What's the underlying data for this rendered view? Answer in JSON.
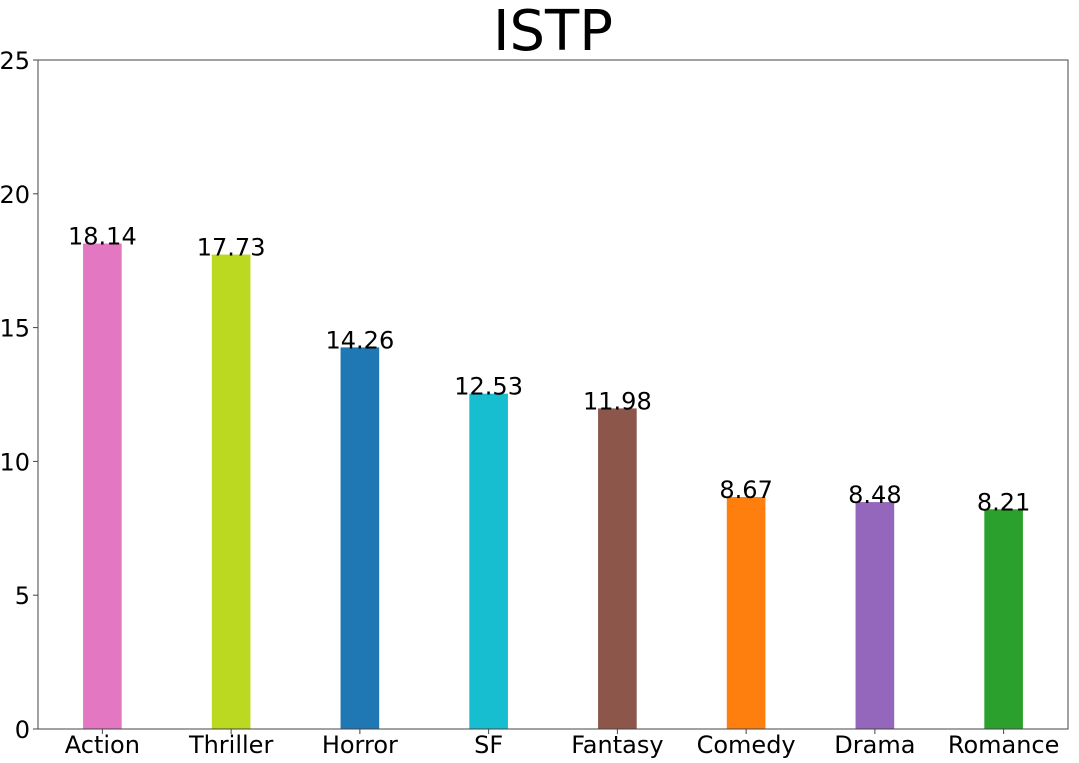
{
  "chart_data": {
    "type": "bar",
    "title": "ISTP",
    "xlabel": "",
    "ylabel": "",
    "categories": [
      "Action",
      "Thriller",
      "Horror",
      "SF",
      "Fantasy",
      "Comedy",
      "Drama",
      "Romance"
    ],
    "values": [
      18.14,
      17.73,
      14.26,
      12.53,
      11.98,
      8.67,
      8.48,
      8.21
    ],
    "value_labels": [
      "18.14",
      "17.73",
      "14.26",
      "12.53",
      "11.98",
      "8.67",
      "8.48",
      "8.21"
    ],
    "colors": [
      "#e377c2",
      "#bcd922",
      "#1f77b4",
      "#17becf",
      "#8c564b",
      "#ff7f0e",
      "#9467bd",
      "#2ca02c"
    ],
    "ylim": [
      0,
      25
    ],
    "yticks": [
      0,
      5,
      10,
      15,
      20,
      25
    ],
    "ytick_labels": [
      "0",
      "5",
      "10",
      "15",
      "20",
      "25"
    ],
    "grid": false,
    "legend": "none"
  }
}
